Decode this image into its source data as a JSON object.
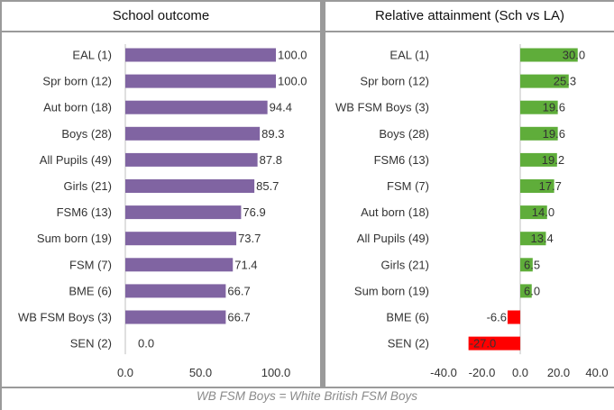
{
  "chart_data": [
    {
      "type": "bar",
      "orientation": "horizontal",
      "title": "School outcome",
      "categories": [
        "EAL (1)",
        "Spr born (12)",
        "Aut born (18)",
        "Boys (28)",
        "All Pupils (49)",
        "Girls (21)",
        "FSM6 (13)",
        "Sum born (19)",
        "FSM (7)",
        "BME (6)",
        "WB FSM Boys (3)",
        "SEN (2)"
      ],
      "values": [
        100.0,
        100.0,
        94.4,
        89.3,
        87.8,
        85.7,
        76.9,
        73.7,
        71.4,
        66.7,
        66.7,
        0.0
      ],
      "labels": [
        "100.0",
        "100.0",
        "94.4",
        "89.3",
        "87.8",
        "85.7",
        "76.9",
        "73.7",
        "71.4",
        "66.7",
        "66.7",
        "0.0"
      ],
      "xlim": [
        0,
        100
      ],
      "xticks": [
        "0.0",
        "50.0",
        "100.0"
      ],
      "grid": false,
      "colors": {
        "bar": "#8064a2"
      }
    },
    {
      "type": "bar",
      "orientation": "horizontal",
      "title": "Relative attainment (Sch vs LA)",
      "categories": [
        "EAL (1)",
        "Spr born (12)",
        "WB FSM Boys (3)",
        "Boys (28)",
        "FSM6 (13)",
        "FSM (7)",
        "Aut born (18)",
        "All Pupils (49)",
        "Girls (21)",
        "Sum born (19)",
        "BME (6)",
        "SEN (2)"
      ],
      "values": [
        30.0,
        25.3,
        19.6,
        19.6,
        19.2,
        17.7,
        14.0,
        13.4,
        6.5,
        6.0,
        -6.6,
        -27.0
      ],
      "labels": [
        "30.0",
        "25.3",
        "19.6",
        "19.6",
        "19.2",
        "17.7",
        "14.0",
        "13.4",
        "6.5",
        "6.0",
        "-6.6",
        "-27.0"
      ],
      "xlim": [
        -40,
        40
      ],
      "xticks": [
        "-40.0",
        "-20.0",
        "0.0",
        "20.0",
        "40.0"
      ],
      "grid": false,
      "colors": {
        "positive": "#5fad3a",
        "negative": "#ff0000"
      }
    }
  ],
  "footnote": "WB FSM Boys = White British FSM Boys"
}
